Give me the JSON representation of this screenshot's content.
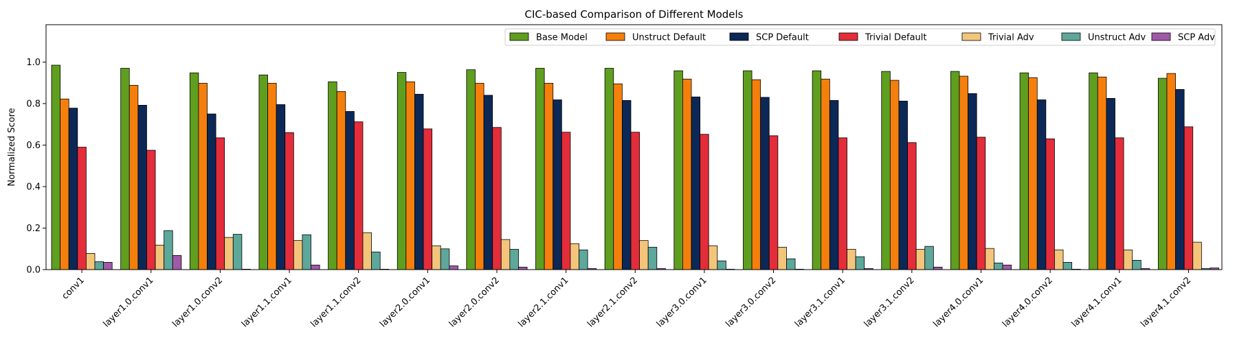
{
  "chart_data": {
    "type": "bar",
    "title": "CIC-based Comparison of Different Models",
    "xlabel": "",
    "ylabel": "Normalized Score",
    "ylim": [
      0,
      1.18
    ],
    "yticks": [
      "0.0",
      "0.2",
      "0.4",
      "0.6",
      "0.8",
      "1.0"
    ],
    "grid": false,
    "legend_position": "top-right",
    "categories": [
      "conv1",
      "layer1.0.conv1",
      "layer1.0.conv2",
      "layer1.1.conv1",
      "layer1.1.conv2",
      "layer2.0.conv1",
      "layer2.0.conv2",
      "layer2.1.conv1",
      "layer2.1.conv2",
      "layer3.0.conv1",
      "layer3.0.conv2",
      "layer3.1.conv1",
      "layer3.1.conv2",
      "layer4.0.conv1",
      "layer4.0.conv2",
      "layer4.1.conv1",
      "layer4.1.conv2"
    ],
    "series": [
      {
        "name": "Base Model",
        "color": "#5f9e1f",
        "values": [
          0.985,
          0.97,
          0.948,
          0.938,
          0.905,
          0.95,
          0.963,
          0.97,
          0.97,
          0.958,
          0.958,
          0.958,
          0.955,
          0.955,
          0.948,
          0.948,
          0.922
        ]
      },
      {
        "name": "Unstruct Default",
        "color": "#f57f0c",
        "values": [
          0.822,
          0.888,
          0.898,
          0.898,
          0.858,
          0.905,
          0.898,
          0.898,
          0.895,
          0.918,
          0.915,
          0.918,
          0.912,
          0.932,
          0.925,
          0.928,
          0.945
        ]
      },
      {
        "name": "SCP Default",
        "color": "#0c2856",
        "values": [
          0.778,
          0.792,
          0.75,
          0.795,
          0.762,
          0.845,
          0.84,
          0.818,
          0.815,
          0.832,
          0.83,
          0.815,
          0.812,
          0.848,
          0.818,
          0.825,
          0.868
        ]
      },
      {
        "name": "Trivial Default",
        "color": "#e32d3a",
        "values": [
          0.59,
          0.575,
          0.635,
          0.66,
          0.712,
          0.678,
          0.685,
          0.662,
          0.662,
          0.652,
          0.645,
          0.635,
          0.612,
          0.638,
          0.63,
          0.635,
          0.688
        ]
      },
      {
        "name": "Trivial Adv",
        "color": "#f3c57b",
        "values": [
          0.078,
          0.118,
          0.155,
          0.14,
          0.178,
          0.115,
          0.145,
          0.125,
          0.14,
          0.115,
          0.108,
          0.098,
          0.098,
          0.102,
          0.095,
          0.095,
          0.132
        ]
      },
      {
        "name": "Unstruct Adv",
        "color": "#5da79b",
        "values": [
          0.038,
          0.188,
          0.17,
          0.168,
          0.085,
          0.1,
          0.098,
          0.095,
          0.108,
          0.042,
          0.052,
          0.062,
          0.112,
          0.032,
          0.035,
          0.045,
          0.005
        ]
      },
      {
        "name": "SCP Adv",
        "color": "#a05aa8",
        "values": [
          0.035,
          0.068,
          0.002,
          0.022,
          0.002,
          0.018,
          0.012,
          0.005,
          0.005,
          0.002,
          0.002,
          0.005,
          0.012,
          0.022,
          0.002,
          0.005,
          0.008
        ]
      }
    ]
  }
}
